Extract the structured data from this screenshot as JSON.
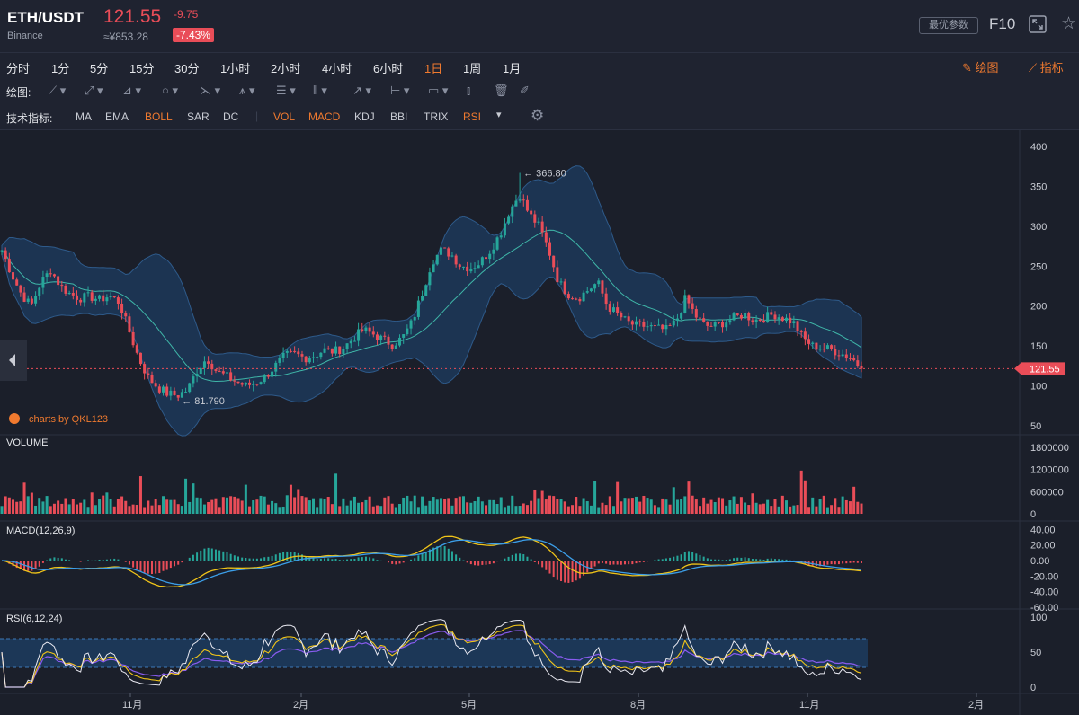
{
  "header": {
    "pair": "ETH/USDT",
    "exchange": "Binance",
    "price": "121.55",
    "change": "-9.75",
    "cny_price": "≈¥853.28",
    "change_pct": "-7.43%",
    "optimal_params": "最优参数",
    "f10": "F10"
  },
  "timeframes": [
    "分时",
    "1分",
    "5分",
    "15分",
    "30分",
    "1小时",
    "2小时",
    "4小时",
    "6小时",
    "1日",
    "1周",
    "1月"
  ],
  "active_timeframe": "1日",
  "right_tools": {
    "draw": "绘图",
    "indicators": "指标"
  },
  "draw_toolbar": {
    "label": "绘图:"
  },
  "indicator_toolbar": {
    "label": "技术指标:",
    "items": [
      "MA",
      "EMA",
      "BOLL",
      "SAR",
      "DC",
      "VOL",
      "MACD",
      "KDJ",
      "BBI",
      "TRIX",
      "RSI"
    ],
    "highlighted": [
      "BOLL",
      "VOL",
      "MACD",
      "RSI"
    ]
  },
  "main_chart": {
    "y_ticks": [
      "400",
      "350",
      "300",
      "250",
      "200",
      "150",
      "100",
      "50"
    ],
    "high_label": "366.80",
    "low_label": "81.790",
    "last_price_tag": "121.55",
    "watermark": "charts by QKL123"
  },
  "volume_panel": {
    "title": "VOLUME",
    "y_ticks": [
      "1800000",
      "1200000",
      "600000",
      "0"
    ]
  },
  "macd_panel": {
    "title": "MACD(12,26,9)",
    "y_ticks": [
      "40.00",
      "20.00",
      "0.00",
      "-20.00",
      "-40.00",
      "-60.00"
    ]
  },
  "rsi_panel": {
    "title": "RSI(6,12,24)",
    "y_ticks": [
      "100",
      "50",
      "0"
    ]
  },
  "x_axis": [
    "11月",
    "2月",
    "5月",
    "8月",
    "11月",
    "2月"
  ],
  "colors": {
    "up": "#26a69a",
    "down": "#e94d58",
    "accent": "#f07a2f",
    "background": "#1b1f2a",
    "band": "#1d3a5c"
  },
  "chart_data": {
    "type": "candlestick",
    "price_range": [
      50,
      400
    ],
    "close_series_approx": [
      270,
      240,
      215,
      200,
      230,
      245,
      225,
      215,
      210,
      212,
      208,
      213,
      205,
      170,
      135,
      110,
      98,
      90,
      88,
      95,
      120,
      135,
      118,
      112,
      105,
      100,
      104,
      112,
      125,
      138,
      140,
      135,
      138,
      145,
      143,
      148,
      160,
      170,
      165,
      158,
      152,
      160,
      180,
      215,
      255,
      270,
      265,
      250,
      248,
      255,
      270,
      290,
      320,
      340,
      315,
      300,
      270,
      230,
      215,
      210,
      220,
      230,
      200,
      190,
      180,
      175,
      175,
      172,
      170,
      180,
      210,
      188,
      175,
      175,
      180,
      185,
      190,
      182,
      185,
      190,
      185,
      180,
      160,
      150,
      148,
      145,
      140,
      135,
      121.55
    ],
    "high": 366.8,
    "low": 81.79,
    "last": 121.55
  }
}
